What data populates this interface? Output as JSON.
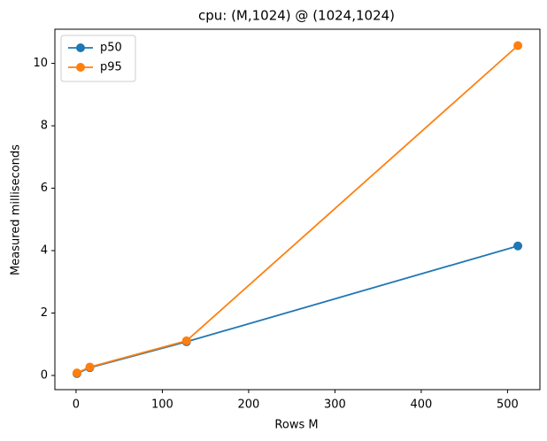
{
  "chart_data": {
    "type": "line",
    "title": "cpu: (M,1024) @ (1024,1024)",
    "x_label": "Rows M",
    "y_label": "Measured milliseconds",
    "x": [
      1,
      16,
      128,
      512
    ],
    "series": [
      {
        "name": "p50",
        "color": "#1f77b4",
        "values": [
          0.06,
          0.25,
          1.08,
          4.15
        ]
      },
      {
        "name": "p95",
        "color": "#ff7f0e",
        "values": [
          0.08,
          0.27,
          1.11,
          10.57
        ]
      }
    ],
    "xlim": [
      -24.55,
      537.55
    ],
    "ylim": [
      -0.455,
      11.095
    ],
    "xticks": [
      0,
      100,
      200,
      300,
      400,
      500
    ],
    "yticks": [
      0,
      2,
      4,
      6,
      8,
      10
    ],
    "legend": "upper-left",
    "grid": false
  }
}
